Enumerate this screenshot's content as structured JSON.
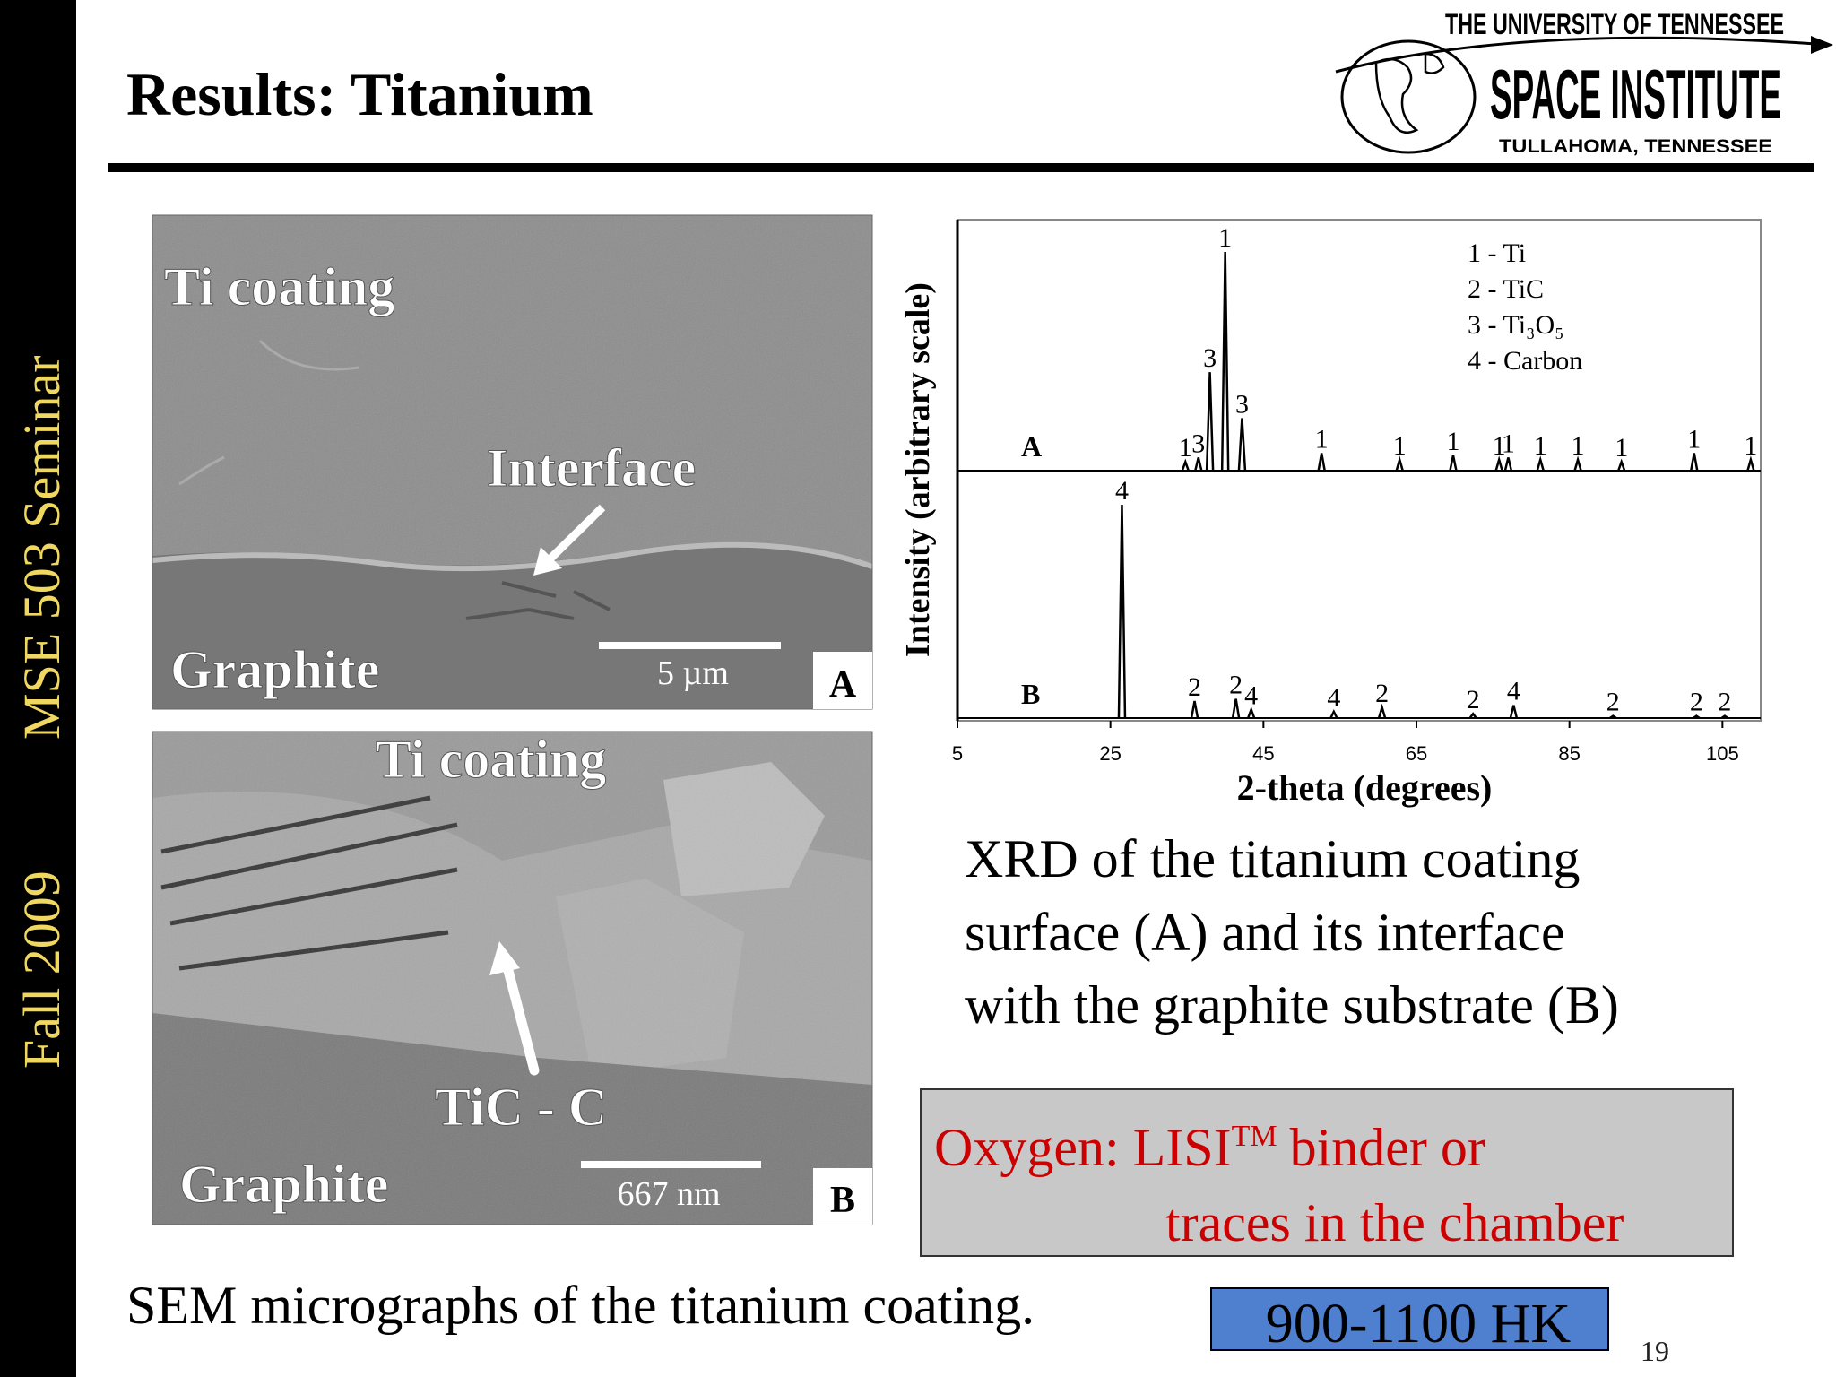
{
  "slide": {
    "title": "Results: Titanium",
    "side_date": "Fall 2009",
    "side_course": "MSE 503 Seminar",
    "page_number": "19"
  },
  "logo": {
    "line1": "THE UNIVERSITY OF TENNESSEE",
    "line2": "SPACE INSTITUTE",
    "line3": "TULLAHOMA, TENNESSEE"
  },
  "sem": {
    "panel_a": {
      "top_label": "Ti coating",
      "arrow_label": "Interface",
      "bottom_label": "Graphite",
      "scale": "5 µm",
      "letter": "A"
    },
    "panel_b": {
      "top_label": "Ti coating",
      "arrow_label": "TiC - C",
      "bottom_label": "Graphite",
      "scale": "667 nm",
      "letter": "B"
    },
    "caption": "SEM micrographs of the titanium coating."
  },
  "chart_data": {
    "type": "xrd",
    "ylabel": "Intensity (arbitrary scale)",
    "xlabel": "2-theta (degrees)",
    "xlim": [
      5,
      110
    ],
    "xticks": [
      5,
      25,
      45,
      65,
      85,
      105
    ],
    "ylim": [
      0,
      100
    ],
    "legend": [
      "1 - Ti",
      "2 - TiC",
      "3 - Ti₃O₅",
      "4 - Carbon"
    ],
    "series": [
      {
        "name": "A",
        "color": "#000000",
        "x": [
          34.8,
          36.5,
          38.0,
          40.0,
          42.2,
          52.6,
          62.8,
          69.8,
          75.8,
          77.0,
          81.2,
          86.1,
          91.8,
          101.3,
          108.7
        ],
        "values": [
          4,
          6,
          45,
          100,
          24,
          8,
          5,
          7,
          5,
          6,
          5,
          5,
          4,
          8,
          5
        ],
        "labels": [
          "1",
          "3",
          "3",
          "1",
          "3",
          "1",
          "1",
          "1",
          "1",
          "1",
          "1",
          "1",
          "1",
          "1",
          "1"
        ]
      },
      {
        "name": "B",
        "color": "#000000",
        "x": [
          26.5,
          36.0,
          41.4,
          43.4,
          54.2,
          60.5,
          72.4,
          77.7,
          90.7,
          101.6,
          105.3
        ],
        "values": [
          100,
          8,
          9,
          4,
          3,
          5,
          2,
          6,
          1,
          1,
          1
        ],
        "labels": [
          "4",
          "2",
          "2",
          "4",
          "4",
          "2",
          "2",
          "4",
          "2",
          "2",
          "2"
        ]
      }
    ]
  },
  "xrd_caption": [
    "XRD of the titanium coating",
    "surface (A) and its interface",
    "with the graphite substrate (B)"
  ],
  "note": {
    "line1_prefix": "Oxygen: LISI",
    "line1_sup": "TM",
    "line1_suffix": "binder or",
    "line2": "traces in the chamber"
  },
  "hardness": "900-1100 HK"
}
